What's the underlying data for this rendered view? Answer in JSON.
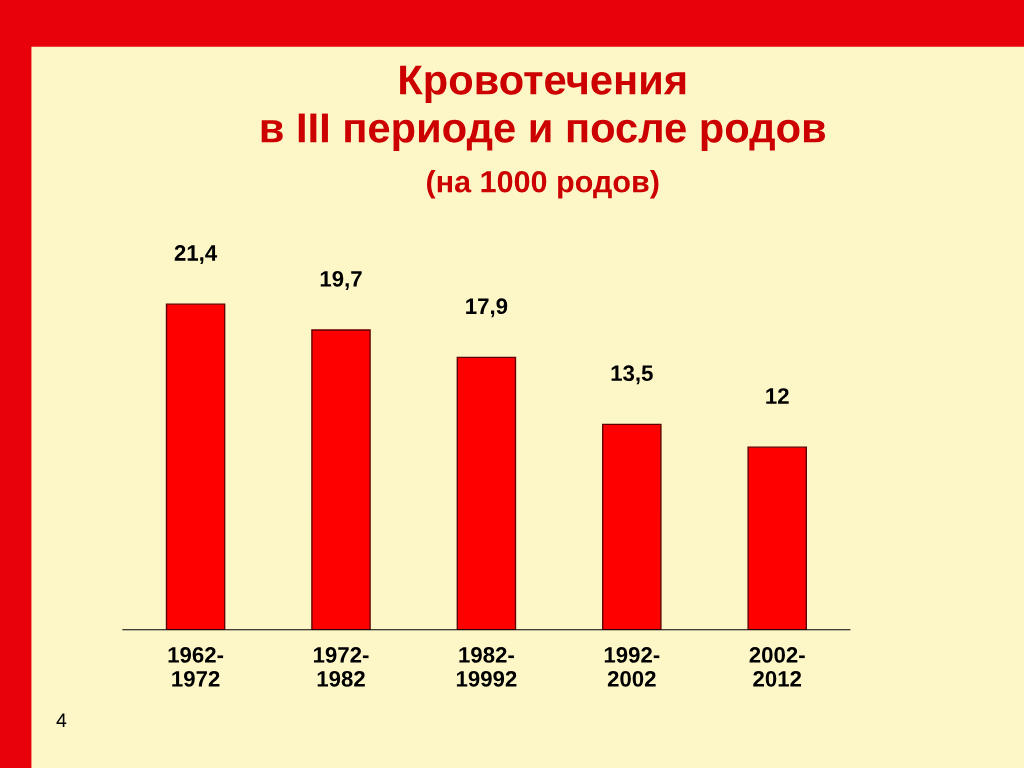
{
  "chart_data": {
    "type": "bar",
    "title": "Кровотечения\nв III периоде и после родов",
    "subtitle": "(на 1000 родов)",
    "categories": [
      "1962-\n1972",
      "1972-\n1982",
      "1982-\n19992",
      "1992-\n2002",
      "2002-\n2012"
    ],
    "values": [
      21.4,
      19.7,
      17.9,
      13.5,
      12
    ],
    "value_labels": [
      "21,4",
      "19,7",
      "17,9",
      "13,5",
      "12"
    ],
    "color": "#ff0000",
    "annotations": [
      "4"
    ]
  }
}
